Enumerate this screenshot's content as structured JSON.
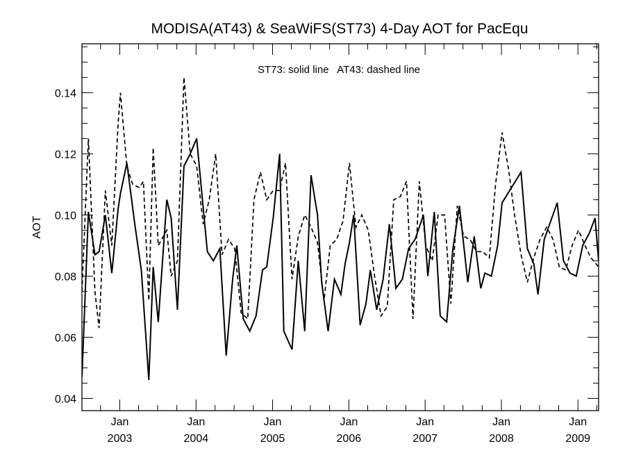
{
  "chart_data": {
    "type": "line",
    "title": "MODISA(AT43) & SeaWiFS(ST73) 4-Day AOT for PacEqu",
    "annotation": "ST73: solid line   AT43: dashed line",
    "ylabel": "AOT",
    "xlabel": "",
    "ylim": [
      0.036,
      0.156
    ],
    "xlim": [
      "2002-07-04",
      "2009-04-10"
    ],
    "yticks": [
      "0.04",
      "0.06",
      "0.08",
      "0.10",
      "0.12",
      "0.14"
    ],
    "xticks": [
      {
        "date": "2003-01-01",
        "month": "Jan",
        "year": "2003"
      },
      {
        "date": "2004-01-01",
        "month": "Jan",
        "year": "2004"
      },
      {
        "date": "2005-01-01",
        "month": "Jan",
        "year": "2005"
      },
      {
        "date": "2006-01-01",
        "month": "Jan",
        "year": "2006"
      },
      {
        "date": "2007-01-01",
        "month": "Jan",
        "year": "2007"
      },
      {
        "date": "2008-01-01",
        "month": "Jan",
        "year": "2008"
      },
      {
        "date": "2009-01-01",
        "month": "Jan",
        "year": "2009"
      }
    ],
    "grid": false,
    "series": [
      {
        "name": "ST73",
        "style": "solid",
        "color": "#000000",
        "x": [
          "2002-07-04",
          "2002-08-04",
          "2002-09-04",
          "2002-09-24",
          "2002-10-24",
          "2002-11-24",
          "2002-12-24",
          "2003-01-04",
          "2003-02-04",
          "2003-03-14",
          "2003-04-14",
          "2003-05-20",
          "2003-06-10",
          "2003-07-04",
          "2003-08-14",
          "2003-09-04",
          "2003-10-04",
          "2003-11-04",
          "2003-12-04",
          "2004-01-04",
          "2004-02-24",
          "2004-03-24",
          "2004-04-24",
          "2004-05-24",
          "2004-06-24",
          "2004-07-14",
          "2004-08-14",
          "2004-09-14",
          "2004-10-14",
          "2004-11-14",
          "2004-12-04",
          "2005-01-04",
          "2005-02-04",
          "2005-02-24",
          "2005-04-04",
          "2005-05-04",
          "2005-06-04",
          "2005-07-04",
          "2005-08-04",
          "2005-08-24",
          "2005-09-24",
          "2005-10-24",
          "2005-11-24",
          "2005-12-14",
          "2006-01-04",
          "2006-01-24",
          "2006-02-24",
          "2006-03-24",
          "2006-04-14",
          "2006-05-14",
          "2006-06-14",
          "2006-07-14",
          "2006-08-14",
          "2006-09-14",
          "2006-10-14",
          "2006-11-14",
          "2006-12-24",
          "2007-01-14",
          "2007-02-14",
          "2007-03-14",
          "2007-04-14",
          "2007-05-14",
          "2007-06-14",
          "2007-07-24",
          "2007-08-24",
          "2007-09-24",
          "2007-10-14",
          "2007-11-14",
          "2007-12-14",
          "2008-01-04",
          "2008-04-04",
          "2008-05-04",
          "2008-06-04",
          "2008-06-24",
          "2008-07-24",
          "2008-09-24",
          "2008-10-24",
          "2008-11-24",
          "2008-12-24",
          "2009-01-24",
          "2009-02-24",
          "2009-03-24",
          "2009-04-10"
        ],
        "y": [
          0.047,
          0.101,
          0.087,
          0.088,
          0.1,
          0.081,
          0.102,
          0.107,
          0.117,
          0.097,
          0.082,
          0.046,
          0.083,
          0.065,
          0.105,
          0.099,
          0.069,
          0.116,
          0.12,
          0.125,
          0.088,
          0.085,
          0.089,
          0.054,
          0.079,
          0.09,
          0.066,
          0.062,
          0.067,
          0.082,
          0.083,
          0.099,
          0.12,
          0.062,
          0.056,
          0.085,
          0.062,
          0.113,
          0.1,
          0.078,
          0.062,
          0.079,
          0.074,
          0.084,
          0.091,
          0.1,
          0.064,
          0.071,
          0.082,
          0.069,
          0.079,
          0.097,
          0.076,
          0.079,
          0.089,
          0.092,
          0.1,
          0.08,
          0.101,
          0.067,
          0.065,
          0.089,
          0.103,
          0.078,
          0.093,
          0.076,
          0.081,
          0.08,
          0.09,
          0.104,
          0.114,
          0.089,
          0.084,
          0.074,
          0.092,
          0.104,
          0.085,
          0.081,
          0.08,
          0.09,
          0.094,
          0.099,
          0.085
        ]
      },
      {
        "name": "AT43",
        "style": "dashed",
        "color": "#000000",
        "x": [
          "2002-07-04",
          "2002-08-04",
          "2002-09-04",
          "2002-09-24",
          "2002-10-24",
          "2002-11-24",
          "2002-12-24",
          "2003-01-04",
          "2003-02-04",
          "2003-03-04",
          "2003-04-04",
          "2003-04-24",
          "2003-05-20",
          "2003-06-10",
          "2003-07-04",
          "2003-08-14",
          "2003-09-04",
          "2003-10-04",
          "2003-11-04",
          "2003-12-04",
          "2004-01-04",
          "2004-02-04",
          "2004-03-04",
          "2004-04-04",
          "2004-05-04",
          "2004-06-04",
          "2004-07-04",
          "2004-08-04",
          "2004-09-04",
          "2004-10-04",
          "2004-11-04",
          "2004-12-04",
          "2005-01-04",
          "2005-02-04",
          "2005-03-04",
          "2005-04-04",
          "2005-05-04",
          "2005-06-04",
          "2005-07-04",
          "2005-08-04",
          "2005-09-04",
          "2005-10-04",
          "2005-11-04",
          "2005-12-04",
          "2006-01-04",
          "2006-02-04",
          "2006-03-04",
          "2006-04-04",
          "2006-05-04",
          "2006-06-04",
          "2006-07-04",
          "2006-08-04",
          "2006-09-04",
          "2006-10-04",
          "2006-11-04",
          "2006-12-04",
          "2007-01-04",
          "2007-02-04",
          "2007-03-04",
          "2007-04-04",
          "2007-05-04",
          "2007-06-04",
          "2007-07-04",
          "2007-08-04",
          "2007-09-04",
          "2007-10-04",
          "2007-11-04",
          "2007-12-04",
          "2008-01-04",
          "2008-02-04",
          "2008-03-04",
          "2008-04-04",
          "2008-05-04",
          "2008-06-04",
          "2008-07-04",
          "2008-08-04",
          "2008-09-04",
          "2008-10-04",
          "2008-11-04",
          "2008-12-04",
          "2009-01-04",
          "2009-02-04",
          "2009-03-04",
          "2009-04-10"
        ],
        "y": [
          0.075,
          0.125,
          0.075,
          0.063,
          0.108,
          0.09,
          0.13,
          0.14,
          0.116,
          0.11,
          0.109,
          0.111,
          0.072,
          0.122,
          0.09,
          0.095,
          0.08,
          0.085,
          0.145,
          0.12,
          0.116,
          0.097,
          0.105,
          0.12,
          0.087,
          0.092,
          0.089,
          0.068,
          0.066,
          0.105,
          0.114,
          0.105,
          0.108,
          0.108,
          0.117,
          0.079,
          0.093,
          0.1,
          0.096,
          0.091,
          0.072,
          0.09,
          0.092,
          0.098,
          0.117,
          0.096,
          0.1,
          0.095,
          0.08,
          0.067,
          0.07,
          0.105,
          0.106,
          0.111,
          0.066,
          0.111,
          0.09,
          0.085,
          0.1,
          0.1,
          0.071,
          0.103,
          0.093,
          0.092,
          0.088,
          0.088,
          0.086,
          0.11,
          0.127,
          0.115,
          0.1,
          0.087,
          0.078,
          0.086,
          0.092,
          0.096,
          0.092,
          0.083,
          0.082,
          0.09,
          0.095,
          0.09,
          0.086,
          0.083
        ]
      }
    ]
  }
}
